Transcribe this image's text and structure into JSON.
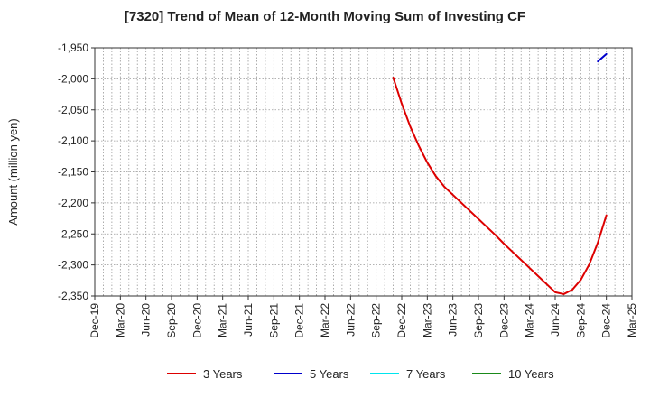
{
  "chart_data": {
    "type": "line",
    "title": "[7320]  Trend of Mean of 12-Month Moving Sum of Investing CF",
    "ylabel": "Amount (million yen)",
    "xlabel": "",
    "ylim": [
      -2350,
      -1950
    ],
    "yticks": [
      "-1,950",
      "-2,000",
      "-2,050",
      "-2,100",
      "-2,150",
      "-2,200",
      "-2,250",
      "-2,300",
      "-2,350"
    ],
    "ytick_values": [
      -1950,
      -2000,
      -2050,
      -2100,
      -2150,
      -2200,
      -2250,
      -2300,
      -2350
    ],
    "xticks": [
      "Dec-19",
      "Mar-20",
      "Jun-20",
      "Sep-20",
      "Dec-20",
      "Mar-21",
      "Jun-21",
      "Sep-21",
      "Dec-21",
      "Mar-22",
      "Jun-22",
      "Sep-22",
      "Dec-22",
      "Mar-23",
      "Jun-23",
      "Sep-23",
      "Dec-23",
      "Mar-24",
      "Jun-24",
      "Sep-24",
      "Dec-24",
      "Mar-25"
    ],
    "grid": true,
    "legend_position": "bottom",
    "series": [
      {
        "name": "3 Years",
        "color": "#dd0000",
        "x": [
          "Nov-22",
          "Dec-22",
          "Jan-23",
          "Feb-23",
          "Mar-23",
          "Apr-23",
          "May-23",
          "Jun-23",
          "Jul-23",
          "Aug-23",
          "Sep-23",
          "Oct-23",
          "Nov-23",
          "Dec-23",
          "Jan-24",
          "Feb-24",
          "Mar-24",
          "Apr-24",
          "May-24",
          "Jun-24",
          "Jul-24",
          "Aug-24",
          "Sep-24",
          "Oct-24",
          "Nov-24",
          "Dec-24"
        ],
        "y": [
          -1998,
          -2040,
          -2077,
          -2108,
          -2135,
          -2157,
          -2174,
          -2187,
          -2200,
          -2213,
          -2226,
          -2239,
          -2252,
          -2266,
          -2279,
          -2292,
          -2305,
          -2318,
          -2331,
          -2344,
          -2347,
          -2340,
          -2324,
          -2299,
          -2264,
          -2220
        ]
      },
      {
        "name": "5 Years",
        "color": "#0000cc",
        "x": [
          "Nov-24",
          "Dec-24"
        ],
        "y": [
          -1972,
          -1960
        ]
      },
      {
        "name": "7 Years",
        "color": "#00e5ee",
        "x": [],
        "y": []
      },
      {
        "name": "10 Years",
        "color": "#1a8a1a",
        "x": [],
        "y": []
      }
    ]
  }
}
